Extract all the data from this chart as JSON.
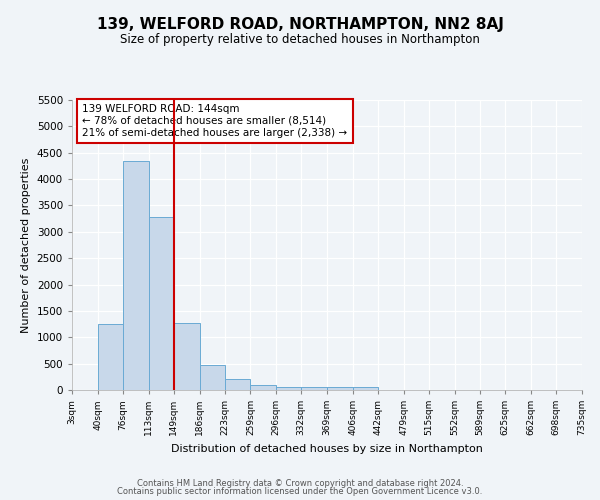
{
  "title": "139, WELFORD ROAD, NORTHAMPTON, NN2 8AJ",
  "subtitle": "Size of property relative to detached houses in Northampton",
  "xlabel": "Distribution of detached houses by size in Northampton",
  "ylabel": "Number of detached properties",
  "bin_edges": [
    3,
    40,
    76,
    113,
    149,
    186,
    223,
    259,
    296,
    332,
    369,
    406,
    442,
    479,
    515,
    552,
    589,
    625,
    662,
    698,
    735
  ],
  "bin_labels": [
    "3sqm",
    "40sqm",
    "76sqm",
    "113sqm",
    "149sqm",
    "186sqm",
    "223sqm",
    "259sqm",
    "296sqm",
    "332sqm",
    "369sqm",
    "406sqm",
    "442sqm",
    "479sqm",
    "515sqm",
    "552sqm",
    "589sqm",
    "625sqm",
    "662sqm",
    "698sqm",
    "735sqm"
  ],
  "bar_heights": [
    0,
    1250,
    4350,
    3275,
    1275,
    475,
    215,
    90,
    65,
    55,
    55,
    55,
    0,
    0,
    0,
    0,
    0,
    0,
    0,
    0
  ],
  "bar_color": "#c8d8ea",
  "bar_edge_color": "#6aaad4",
  "red_line_x": 149,
  "ylim": [
    0,
    5500
  ],
  "yticks": [
    0,
    500,
    1000,
    1500,
    2000,
    2500,
    3000,
    3500,
    4000,
    4500,
    5000,
    5500
  ],
  "annotation_title": "139 WELFORD ROAD: 144sqm",
  "annotation_line1": "← 78% of detached houses are smaller (8,514)",
  "annotation_line2": "21% of semi-detached houses are larger (2,338) →",
  "annotation_box_color": "#ffffff",
  "annotation_box_edge_color": "#cc0000",
  "footer_line1": "Contains HM Land Registry data © Crown copyright and database right 2024.",
  "footer_line2": "Contains public sector information licensed under the Open Government Licence v3.0.",
  "background_color": "#f0f4f8",
  "grid_color": "#ffffff"
}
